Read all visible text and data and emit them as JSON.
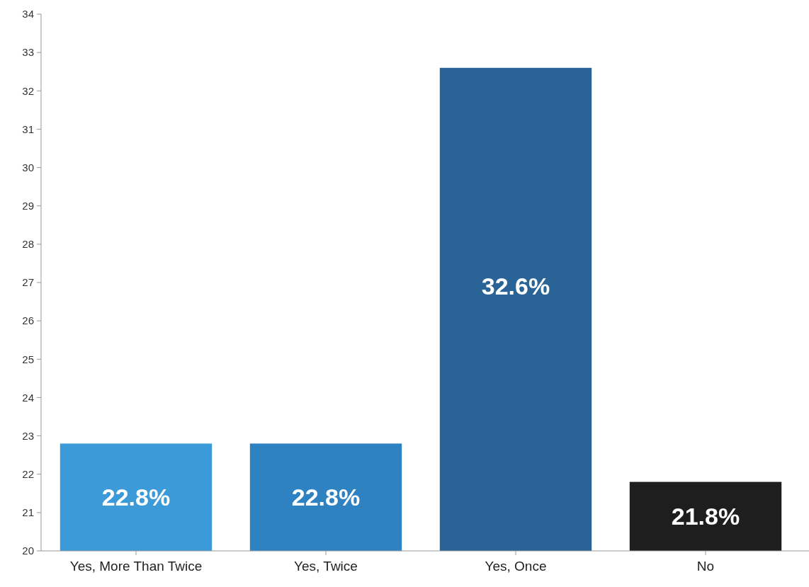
{
  "chart_data": {
    "type": "bar",
    "categories": [
      "Yes, More Than Twice",
      "Yes, Twice",
      "Yes, Once",
      "No"
    ],
    "values": [
      22.8,
      22.8,
      32.6,
      21.8
    ],
    "colors": [
      "#3d9ad8",
      "#2f82c2",
      "#2a6496",
      "#1e1e1e"
    ],
    "value_labels": [
      "22.8%",
      "22.8%",
      "32.6%",
      "21.8%"
    ],
    "ylim": [
      20,
      34
    ],
    "yticks": [
      20,
      21,
      22,
      23,
      24,
      25,
      26,
      27,
      28,
      29,
      30,
      31,
      32,
      33,
      34
    ],
    "grid": false
  }
}
